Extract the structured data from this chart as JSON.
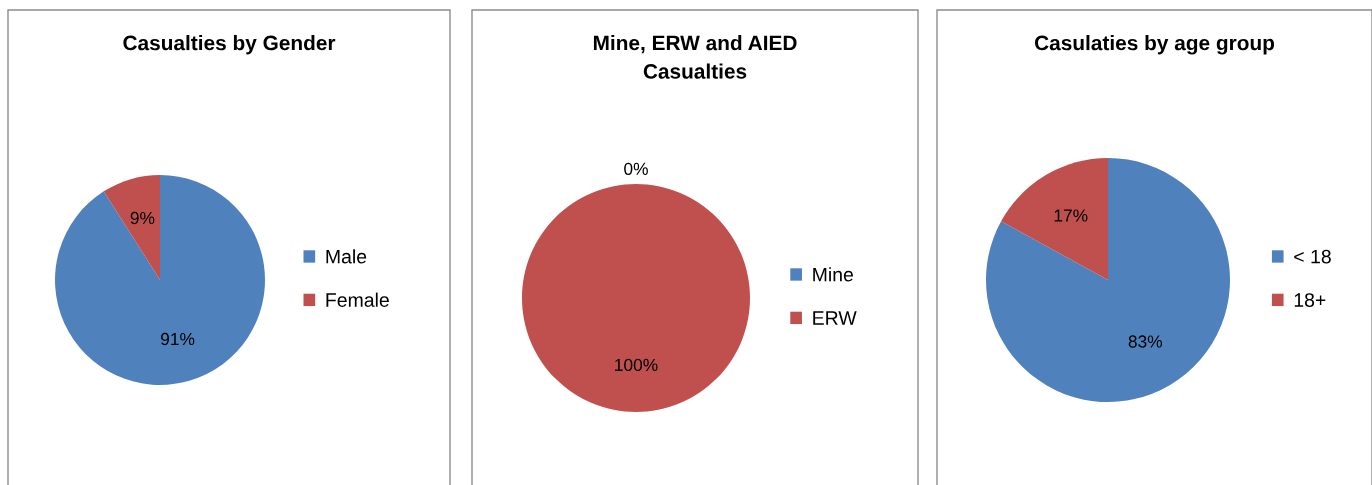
{
  "chart_data": [
    {
      "type": "pie",
      "title": "Casualties by Gender",
      "categories": [
        "Male",
        "Female"
      ],
      "values": [
        91,
        9
      ],
      "colors": [
        "#4f81bd",
        "#c0504d"
      ],
      "value_labels": [
        "91%",
        "9%"
      ],
      "legend": "right"
    },
    {
      "type": "pie",
      "title": "Mine, ERW and AIED\nCasualties",
      "categories": [
        "Mine",
        "ERW"
      ],
      "values": [
        0,
        100
      ],
      "colors": [
        "#4f81bd",
        "#c0504d"
      ],
      "value_labels": [
        "0%",
        "100%"
      ],
      "legend": "right"
    },
    {
      "type": "pie",
      "title": "Casulaties by age group",
      "categories": [
        "< 18",
        "18+"
      ],
      "values": [
        83,
        17
      ],
      "colors": [
        "#4f81bd",
        "#c0504d"
      ],
      "value_labels": [
        "83%",
        "17%"
      ],
      "legend": "right"
    }
  ]
}
